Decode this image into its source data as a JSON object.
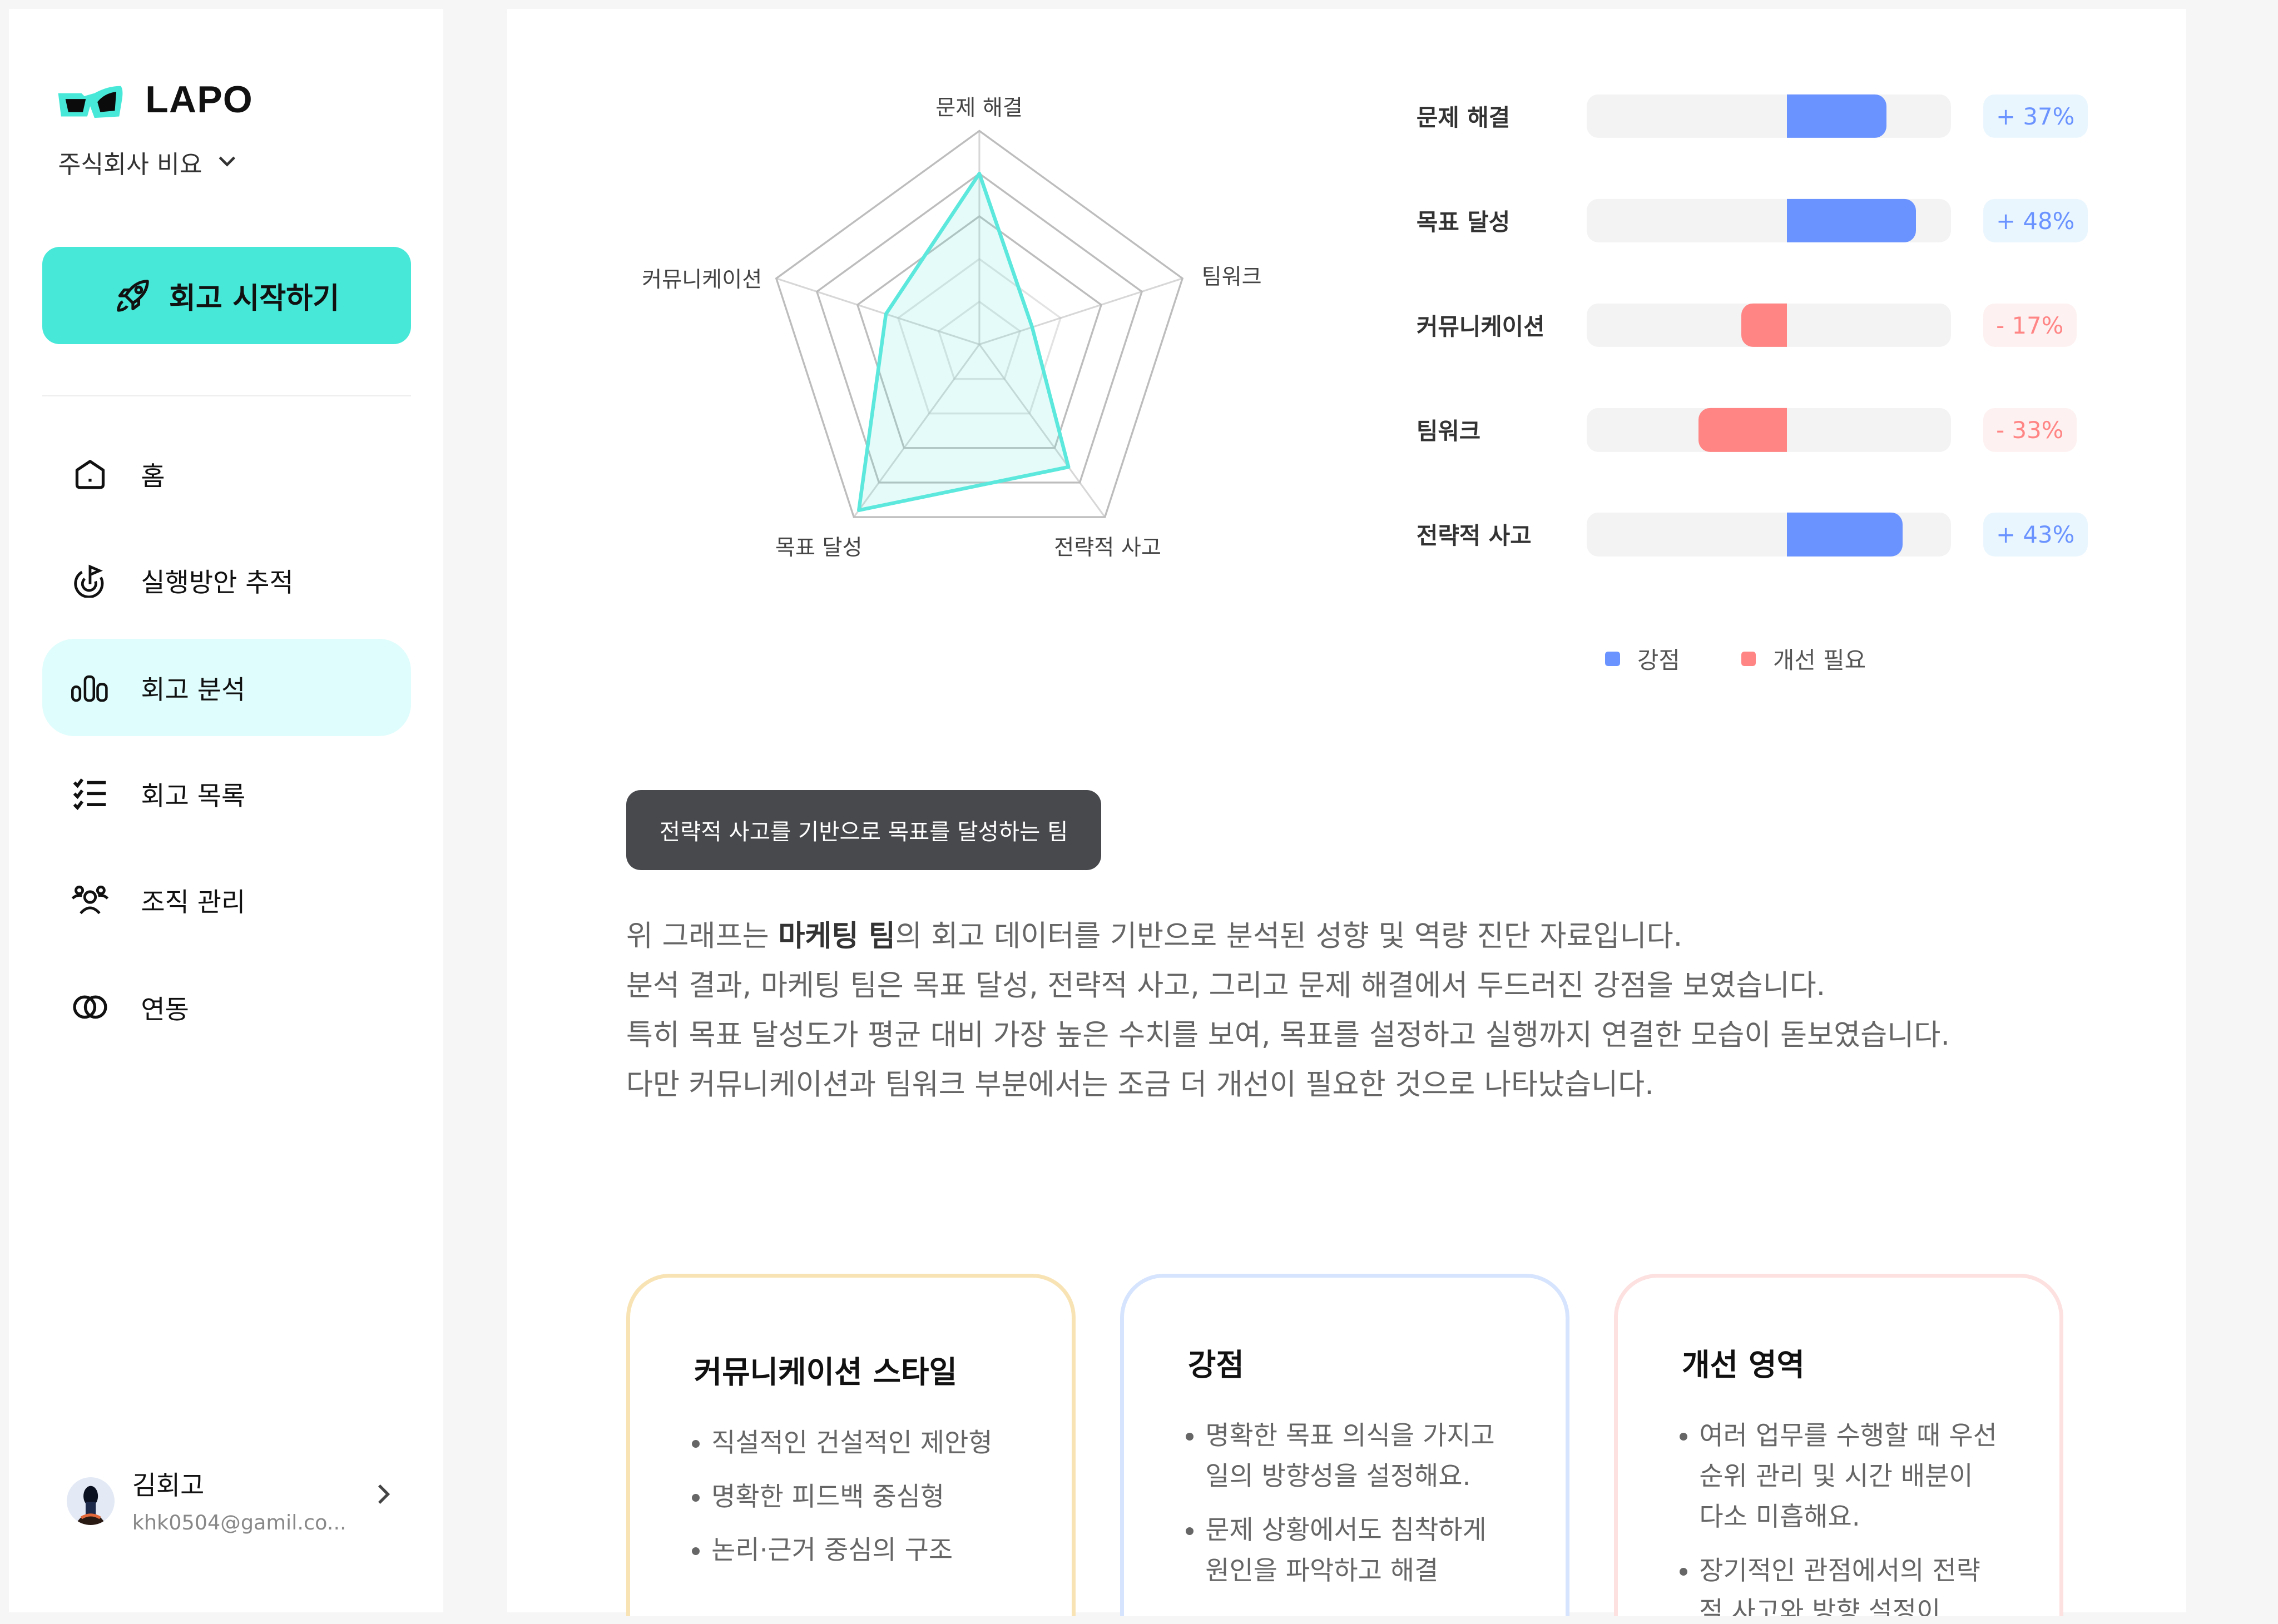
{
  "brand": {
    "name": "LAPO",
    "company": "주식회사 비요",
    "accent": "#47e8d8"
  },
  "sidebar": {
    "start_button": "회고 시작하기",
    "items": [
      {
        "label": "홈",
        "icon": "home-icon",
        "active": false
      },
      {
        "label": "실행방안 추적",
        "icon": "target-flag-icon",
        "active": false
      },
      {
        "label": "회고 분석",
        "icon": "bar-chart-icon",
        "active": true
      },
      {
        "label": "회고 목록",
        "icon": "checklist-icon",
        "active": false
      },
      {
        "label": "조직 관리",
        "icon": "users-icon",
        "active": false
      },
      {
        "label": "연동",
        "icon": "link-icon",
        "active": false
      }
    ],
    "profile": {
      "name": "김회고",
      "email": "khk0504@gamil.co..."
    }
  },
  "chart_data": [
    {
      "type": "radar",
      "axes": [
        "문제 해결",
        "팀워크",
        "전략적 사고",
        "목표 달성",
        "커뮤니케이션"
      ],
      "values": [
        80,
        26,
        71,
        96,
        46
      ],
      "range": [
        0,
        100
      ],
      "rings": 5,
      "color": "#5ce8dc"
    },
    {
      "type": "bar",
      "orientation": "diverging-horizontal",
      "categories": [
        "문제 해결",
        "목표 달성",
        "커뮤니케이션",
        "팀워크",
        "전략적 사고"
      ],
      "values": [
        37,
        48,
        -17,
        -33,
        43
      ],
      "value_labels": [
        "+ 37%",
        "+ 48%",
        "- 17%",
        "- 33%",
        "+ 43%"
      ],
      "legend": [
        {
          "name": "강점",
          "color": "#6b93ff"
        },
        {
          "name": "개선 필요",
          "color": "#ff8585"
        }
      ],
      "legend_position": "bottom"
    }
  ],
  "summary": {
    "tag": "전략적 사고를 기반으로 목표를 달성하는 팀",
    "line1_pre": "위 그래프는 ",
    "line1_bold": "마케팅 팀",
    "line1_post": "의 회고 데이터를 기반으로 분석된 성향 및 역량 진단 자료입니다.",
    "line2": "분석 결과, 마케팅 팀은 목표 달성, 전략적 사고, 그리고 문제 해결에서 두드러진 강점을 보였습니다.",
    "line3": "특히 목표 달성도가 평균 대비 가장 높은 수치를 보여, 목표를 설정하고 실행까지 연결한 모습이 돋보였습니다.",
    "line4": "다만 커뮤니케이션과 팀워크 부분에서는 조금 더 개선이 필요한 것으로 나타났습니다."
  },
  "cards": [
    {
      "title": "커뮤니케이션 스타일",
      "border": "#f8e3b4",
      "items": [
        "직설적인 건설적인 제안형",
        "명확한 피드백 중심형",
        "논리·근거 중심의 구조"
      ]
    },
    {
      "title": "강점",
      "border": "#d6e4fd",
      "items": [
        "명확한 목표 의식을 가지고 일의 방향성을 설정해요.",
        "문제 상황에서도 침착하게 원인을 파악하고 해결"
      ]
    },
    {
      "title": "개선 영역",
      "border": "#fde0e0",
      "items": [
        "여러 업무를 수행할 때 우선순위 관리 및 시간 배분이 다소 미흡해요.",
        "장기적인 관점에서의 전략적 사고와 방향 설정이"
      ]
    }
  ]
}
